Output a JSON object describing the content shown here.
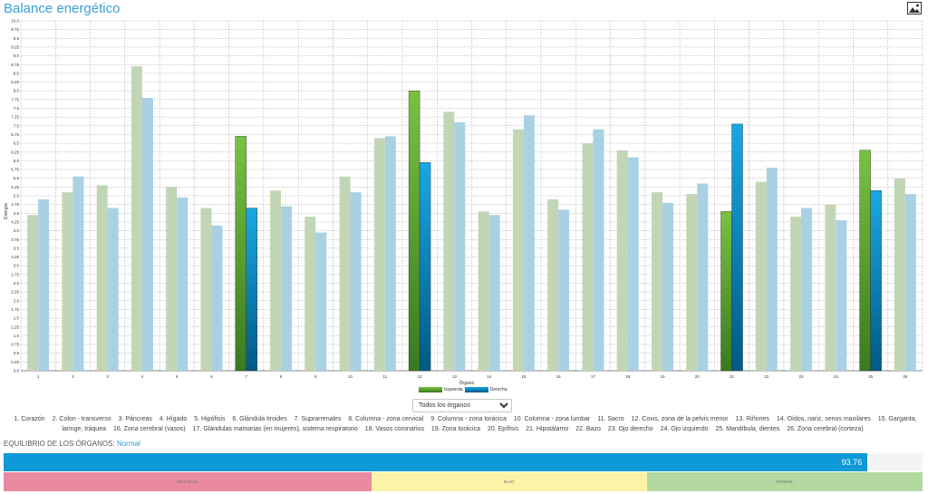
{
  "title": "Balance energético",
  "export_icon": "image-icon",
  "chart_data": {
    "type": "bar",
    "ylabel": "Energía",
    "ylim": [
      0,
      10
    ],
    "ystep": 0.25,
    "yticks": [
      "0.0",
      "0.25",
      "0.5",
      "0.75",
      "1.0",
      "1.25",
      "1.5",
      "1.75",
      "2.0",
      "2.25",
      "2.5",
      "2.75",
      "3.0",
      "3.25",
      "3.5",
      "3.75",
      "4.0",
      "4.25",
      "4.5",
      "4.75",
      "5.0",
      "5.25",
      "5.5",
      "5.75",
      "6.0",
      "6.25",
      "6.5",
      "6.75",
      "7.0",
      "7.25",
      "7.5",
      "7.75",
      "8.0",
      "8.25",
      "8.5",
      "8.75",
      "9.0",
      "9.25",
      "9.5",
      "9.75",
      "10.0"
    ],
    "grid": true,
    "categories": [
      "1",
      "2",
      "3",
      "4",
      "5",
      "6",
      "7",
      "8",
      "9",
      "10",
      "11",
      "12",
      "13",
      "14",
      "15",
      "16",
      "17",
      "18",
      "19",
      "20",
      "21",
      "22",
      "23",
      "24",
      "25",
      "26"
    ],
    "highlighted": [
      "7",
      "12",
      "21",
      "25"
    ],
    "series": [
      {
        "name": "Izquierda",
        "values": [
          4.45,
          5.1,
          5.3,
          8.7,
          5.25,
          4.65,
          6.7,
          5.15,
          4.4,
          5.55,
          6.65,
          8.0,
          7.4,
          4.55,
          6.9,
          4.9,
          6.5,
          6.3,
          5.1,
          5.05,
          4.55,
          5.4,
          4.4,
          4.75,
          6.3,
          5.5
        ]
      },
      {
        "name": "Derecha",
        "values": [
          4.9,
          5.55,
          4.65,
          7.8,
          4.95,
          4.15,
          4.65,
          4.7,
          3.95,
          5.1,
          6.7,
          5.95,
          7.1,
          4.45,
          7.3,
          4.6,
          6.9,
          6.1,
          4.8,
          5.35,
          7.05,
          5.8,
          4.65,
          4.3,
          5.15,
          5.05
        ]
      }
    ],
    "legend": {
      "title": "Órgano",
      "entries": [
        "Izquierda",
        "Derecha"
      ],
      "position": "bottom"
    }
  },
  "colors": {
    "left_dim": "#c2d6b5",
    "right_dim": "#a9d1e4",
    "left_hi_top": "#7ac143",
    "left_hi_bottom": "#3a7a1f",
    "right_hi_top": "#19a8e6",
    "right_hi_bottom": "#005a85",
    "grid": "#9a9a9a",
    "progress": "#0e9ad6"
  },
  "select": {
    "selected": "Todos los órganos"
  },
  "organ_list": [
    "1. Corazón",
    "2. Colon - transverso",
    "3. Páncreas",
    "4. Hígado",
    "5. Hipófisis",
    "6. Glándula tiroides",
    "7. Suprarrenales",
    "8. Columna - zona cervical",
    "9. Columna - zona torácica",
    "10. Columna - zona lumbar",
    "11. Sacro",
    "12. Coxis, zona de la pelvis menor",
    "13. Riñones",
    "14. Oídos, nariz, senos maxilares",
    "15. Garganta, laringe, tráquea",
    "16. Zona cerebral (vasos)",
    "17. Glándulas mamarias (en mujeres), sistema respiratorio",
    "18. Vasos coronarios",
    "19. Zona torácica",
    "20. Epífisis",
    "21. Hipotálamo",
    "22. Bazo",
    "23. Ojo derecho",
    "24. Ojo izquierdo",
    "25. Mandíbula, dientes",
    "26. Zona cerebral (corteza)"
  ],
  "equilibrium": {
    "label": "EQUILIBRIO DE LOS ÓRGANOS:",
    "status": "Normal",
    "value": "93.76",
    "fraction": 0.94
  },
  "scale": [
    {
      "label": "MUY BAJO",
      "color": "#e98aa0",
      "fraction": 0.4
    },
    {
      "label": "BAJO",
      "color": "#fbf4a8",
      "fraction": 0.3
    },
    {
      "label": "NORMAL",
      "color": "#b3d8a0",
      "fraction": 0.3
    }
  ]
}
